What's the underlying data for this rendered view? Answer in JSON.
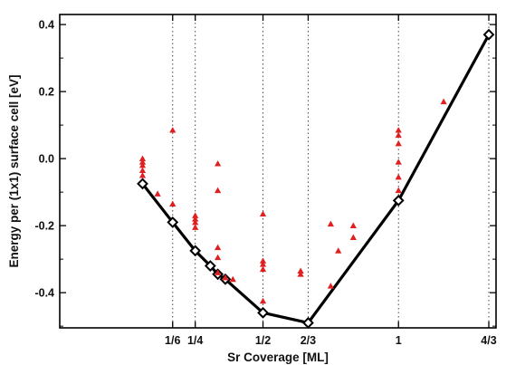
{
  "chart_data": {
    "type": "scatter",
    "xlabel": "Sr Coverage [ML]",
    "ylabel": "Energy per (1x1) surface cell [eV]",
    "xlim": [
      -0.25,
      1.36
    ],
    "ylim": [
      -0.505,
      0.43
    ],
    "x_ticks": [
      {
        "value": 0.1667,
        "label": "1/6"
      },
      {
        "value": 0.25,
        "label": "1/4"
      },
      {
        "value": 0.5,
        "label": "1/2"
      },
      {
        "value": 0.6667,
        "label": "2/3"
      },
      {
        "value": 1.0,
        "label": "1"
      },
      {
        "value": 1.3333,
        "label": "4/3"
      }
    ],
    "y_ticks": [
      {
        "value": 0.4,
        "label": "0.4"
      },
      {
        "value": 0.2,
        "label": "0.2"
      },
      {
        "value": 0.0,
        "label": "0.0"
      },
      {
        "value": -0.2,
        "label": "-0.2"
      },
      {
        "value": -0.4,
        "label": "-0.4"
      }
    ],
    "vertical_guides": [
      0.1667,
      0.25,
      0.5,
      0.6667,
      1.0,
      1.3333
    ],
    "series": [
      {
        "type": "line",
        "marker": "diamond",
        "color": "#000000",
        "x": [
          0.0556,
          0.1667,
          0.25,
          0.3056,
          0.3333,
          0.3611,
          0.5,
          0.6667,
          1.0,
          1.3333
        ],
        "y": [
          -0.075,
          -0.19,
          -0.275,
          -0.32,
          -0.345,
          -0.36,
          -0.46,
          -0.49,
          -0.125,
          0.37
        ]
      },
      {
        "type": "scatter",
        "marker": "triangle",
        "color": "#e02020",
        "x": [
          0.0556,
          0.0556,
          0.0556,
          0.0556,
          0.0556,
          0.1111,
          0.1667,
          0.1667,
          0.25,
          0.25,
          0.25,
          0.25,
          0.3333,
          0.3333,
          0.3333,
          0.3333,
          0.3333,
          0.3611,
          0.3889,
          0.5,
          0.5,
          0.5,
          0.5,
          0.5,
          0.6389,
          0.6389,
          0.75,
          0.75,
          0.7778,
          0.8333,
          0.8333,
          1.0,
          1.0,
          1.0,
          1.0,
          1.0,
          1.0,
          1.1667
        ],
        "y": [
          0.0,
          -0.01,
          -0.02,
          -0.035,
          -0.05,
          -0.105,
          0.085,
          -0.135,
          -0.17,
          -0.18,
          -0.19,
          -0.205,
          -0.015,
          -0.095,
          -0.265,
          -0.295,
          -0.34,
          -0.355,
          -0.36,
          -0.165,
          -0.305,
          -0.315,
          -0.33,
          -0.425,
          -0.335,
          -0.345,
          -0.195,
          -0.38,
          -0.275,
          -0.2,
          -0.235,
          0.085,
          0.07,
          0.045,
          -0.01,
          -0.055,
          -0.095,
          0.17
        ]
      }
    ],
    "grid": false
  }
}
